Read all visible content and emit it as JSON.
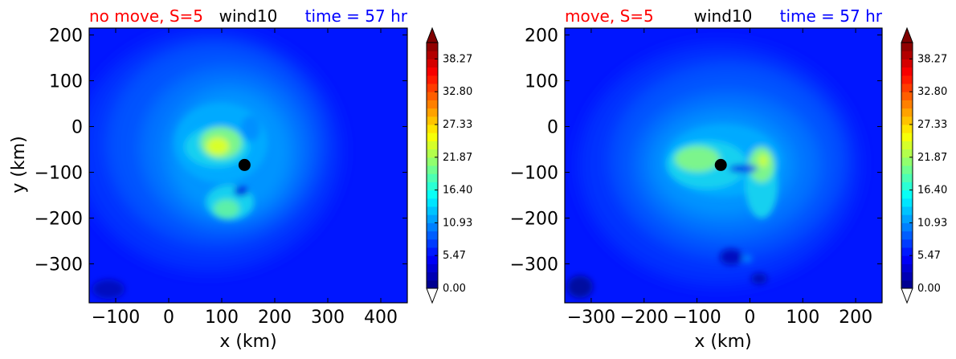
{
  "chart_data": [
    {
      "type": "heatmap",
      "panel": "left",
      "title_left": "no move, S=5",
      "title_center": "wind10",
      "title_right": "time = 57 hr",
      "title_left_color": "#ff0000",
      "title_center_color": "#000000",
      "title_right_color": "#0000ff",
      "xlabel": "x (km)",
      "ylabel": "y (km)",
      "xlim": [
        -150,
        450
      ],
      "ylim": [
        -385,
        215
      ],
      "xticks": [
        -100,
        0,
        100,
        200,
        300,
        400
      ],
      "yticks": [
        200,
        100,
        0,
        -100,
        -200,
        -300
      ],
      "center_marker": {
        "x": 143,
        "y": -84
      },
      "max_regions": [
        {
          "x": 105,
          "y": -55,
          "value": 25
        },
        {
          "x": 140,
          "y": -165,
          "value": 18
        }
      ],
      "colorbar": {
        "ticks": [
          "0.00",
          "5.47",
          "10.93",
          "16.40",
          "21.87",
          "27.33",
          "32.80",
          "38.27"
        ],
        "min": 0,
        "max": 41,
        "extend": "both"
      }
    },
    {
      "type": "heatmap",
      "panel": "right",
      "title_left": "move, S=5",
      "title_center": "wind10",
      "title_right": "time = 57 hr",
      "title_left_color": "#ff0000",
      "title_center_color": "#000000",
      "title_right_color": "#0000ff",
      "xlabel": "x (km)",
      "ylabel": "",
      "xlim": [
        -350,
        250
      ],
      "ylim": [
        -385,
        215
      ],
      "xticks": [
        -300,
        -200,
        -100,
        0,
        100,
        200
      ],
      "yticks": [
        200,
        100,
        0,
        -100,
        -200,
        -300
      ],
      "center_marker": {
        "x": -55,
        "y": -84
      },
      "max_regions": [
        {
          "x": -80,
          "y": -60,
          "value": 20
        },
        {
          "x": 10,
          "y": -80,
          "value": 21
        }
      ],
      "colorbar": {
        "ticks": [
          "0.00",
          "5.47",
          "10.93",
          "16.40",
          "21.87",
          "27.33",
          "32.80",
          "38.27"
        ],
        "min": 0,
        "max": 41,
        "extend": "both"
      }
    }
  ]
}
